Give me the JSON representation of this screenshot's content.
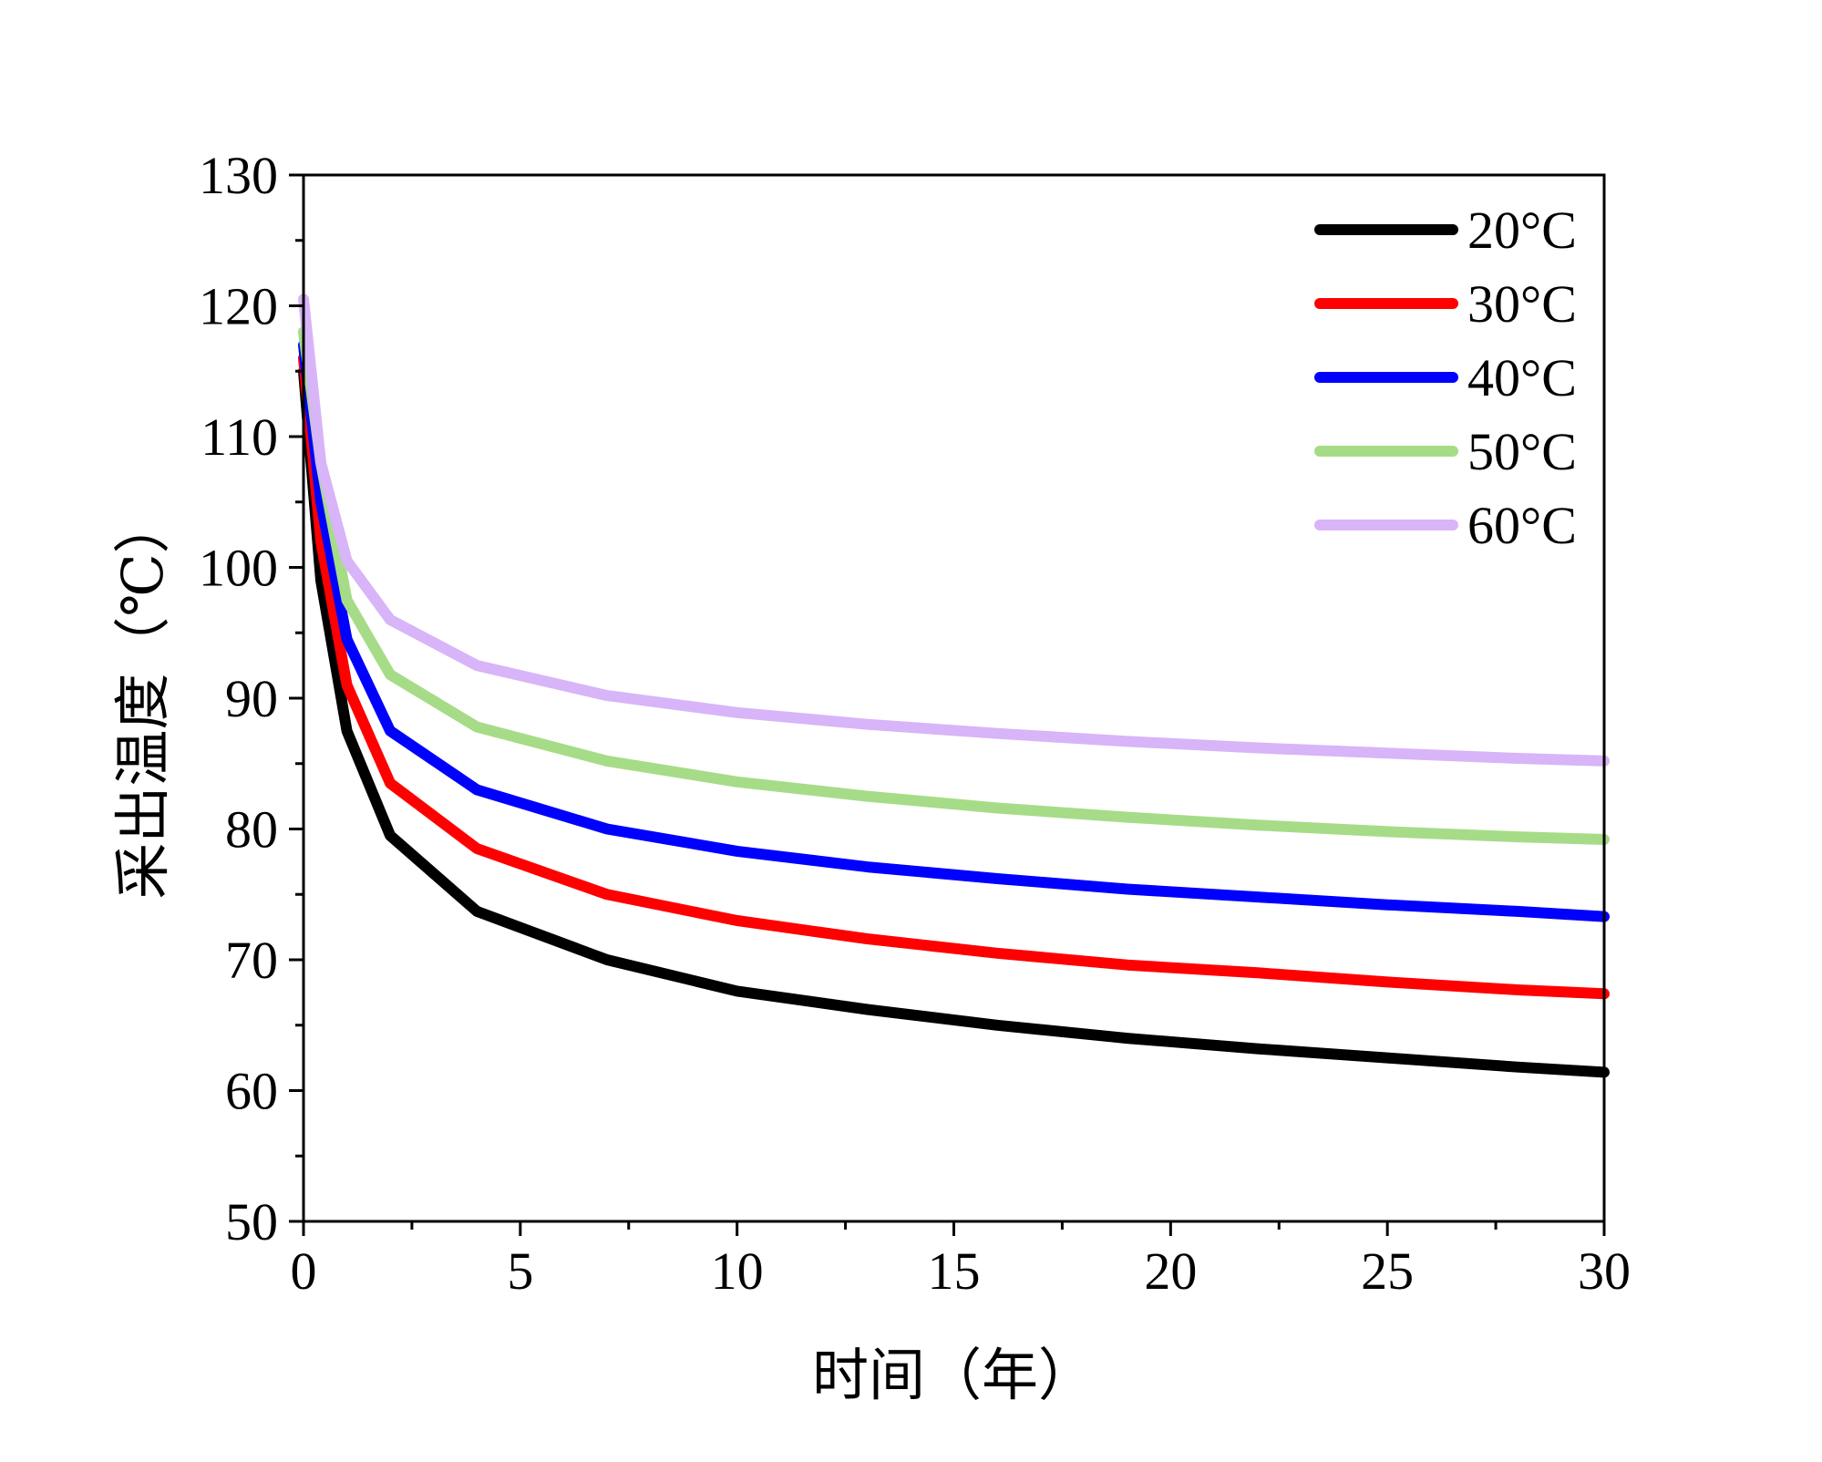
{
  "chart_data": {
    "type": "line",
    "xlabel": "时间（年）",
    "ylabel": "采出温度（℃）",
    "xlim": [
      0,
      30
    ],
    "ylim": [
      50,
      130
    ],
    "xticks": [
      0,
      5,
      10,
      15,
      20,
      25,
      30
    ],
    "yticks": [
      50,
      60,
      70,
      80,
      90,
      100,
      110,
      120,
      130
    ],
    "xtick_labels": [
      "0",
      "5",
      "10",
      "15",
      "20",
      "25",
      "30"
    ],
    "ytick_labels": [
      "50",
      "60",
      "70",
      "80",
      "90",
      "100",
      "110",
      "120",
      "130"
    ],
    "legend_position": "top-right",
    "grid": false,
    "series": [
      {
        "name": "20°C",
        "color": "#000000",
        "x": [
          0,
          0.4,
          1,
          2,
          4,
          7,
          10,
          13,
          16,
          19,
          22,
          25,
          28,
          30
        ],
        "values": [
          115,
          99,
          87.5,
          79.5,
          73.7,
          70,
          67.6,
          66.2,
          65,
          64,
          63.2,
          62.5,
          61.8,
          61.4
        ]
      },
      {
        "name": "30°C",
        "color": "#ff0000",
        "x": [
          0,
          0.4,
          1,
          2,
          4,
          7,
          10,
          13,
          16,
          19,
          22,
          25,
          28,
          30
        ],
        "values": [
          116,
          102,
          91,
          83.5,
          78.5,
          75,
          73,
          71.6,
          70.5,
          69.6,
          69,
          68.3,
          67.7,
          67.4
        ]
      },
      {
        "name": "40°C",
        "color": "#0000ff",
        "x": [
          0,
          0.4,
          1,
          2,
          4,
          7,
          10,
          13,
          16,
          19,
          22,
          25,
          28,
          30
        ],
        "values": [
          117,
          105,
          94.5,
          87.5,
          83,
          80,
          78.3,
          77.1,
          76.2,
          75.4,
          74.8,
          74.2,
          73.7,
          73.3
        ]
      },
      {
        "name": "50°C",
        "color": "#a6dc87",
        "x": [
          0,
          0.4,
          1,
          2,
          4,
          7,
          10,
          13,
          16,
          19,
          22,
          25,
          28,
          30
        ],
        "values": [
          118,
          108,
          97.5,
          91.8,
          87.8,
          85.2,
          83.6,
          82.5,
          81.6,
          80.9,
          80.3,
          79.8,
          79.4,
          79.2
        ]
      },
      {
        "name": "60°C",
        "color": "#d8b4f8",
        "x": [
          0,
          0.4,
          1,
          2,
          4,
          7,
          10,
          13,
          16,
          19,
          22,
          25,
          28,
          30
        ],
        "values": [
          120.5,
          108,
          100.5,
          96,
          92.5,
          90.2,
          88.9,
          88,
          87.3,
          86.7,
          86.2,
          85.8,
          85.4,
          85.2
        ]
      }
    ]
  }
}
